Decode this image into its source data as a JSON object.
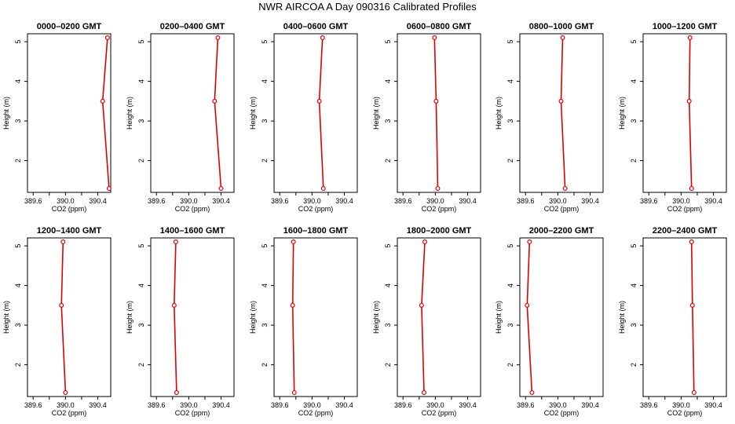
{
  "title": "NWR AIRCOA A  Day 090316  Calibrated Profiles",
  "colors": {
    "series": "#dd0000",
    "frame": "#000000",
    "background": "#ffffff"
  },
  "chart_data": {
    "type": "line",
    "xlabel": "CO2 (ppm)",
    "ylabel": "Height (m)",
    "xlim": [
      389.53,
      390.56
    ],
    "ylim": [
      1.2,
      5.2
    ],
    "xticks": [
      389.6,
      389.8,
      390.0,
      390.2,
      390.4
    ],
    "xtick_labels": [
      "389.6",
      "",
      "390.0",
      "",
      "390.4"
    ],
    "yticks": [
      2,
      3,
      4,
      5
    ],
    "yaxis_ticks_only": [
      1,
      2,
      3,
      4,
      5
    ],
    "grid": false,
    "panels": [
      {
        "title": "0000–0200 GMT",
        "points": [
          {
            "x": 390.52,
            "y": 5.1
          },
          {
            "x": 390.46,
            "y": 3.5
          },
          {
            "x": 390.54,
            "y": 1.3
          }
        ]
      },
      {
        "title": "0200–0400 GMT",
        "points": [
          {
            "x": 390.36,
            "y": 5.1
          },
          {
            "x": 390.32,
            "y": 3.5
          },
          {
            "x": 390.4,
            "y": 1.3
          }
        ]
      },
      {
        "title": "0400–0600 GMT",
        "points": [
          {
            "x": 390.13,
            "y": 5.1
          },
          {
            "x": 390.09,
            "y": 3.5
          },
          {
            "x": 390.14,
            "y": 1.3
          }
        ]
      },
      {
        "title": "0600–0800 GMT",
        "points": [
          {
            "x": 389.99,
            "y": 5.1
          },
          {
            "x": 390.01,
            "y": 3.5
          },
          {
            "x": 390.03,
            "y": 1.3
          }
        ]
      },
      {
        "title": "0800–1000 GMT",
        "points": [
          {
            "x": 390.06,
            "y": 5.1
          },
          {
            "x": 390.04,
            "y": 3.5
          },
          {
            "x": 390.09,
            "y": 1.3
          }
        ]
      },
      {
        "title": "1000–1200 GMT",
        "points": [
          {
            "x": 390.11,
            "y": 5.1
          },
          {
            "x": 390.1,
            "y": 3.5
          },
          {
            "x": 390.13,
            "y": 1.3
          }
        ]
      },
      {
        "title": "1200–1400 GMT",
        "points": [
          {
            "x": 389.97,
            "y": 5.1
          },
          {
            "x": 389.95,
            "y": 3.5
          },
          {
            "x": 390.0,
            "y": 1.3
          }
        ]
      },
      {
        "title": "1400–1600 GMT",
        "points": [
          {
            "x": 389.84,
            "y": 5.1
          },
          {
            "x": 389.82,
            "y": 3.5
          },
          {
            "x": 389.85,
            "y": 1.3
          }
        ]
      },
      {
        "title": "1600–1800 GMT",
        "points": [
          {
            "x": 389.77,
            "y": 5.1
          },
          {
            "x": 389.76,
            "y": 3.5
          },
          {
            "x": 389.78,
            "y": 1.3
          }
        ]
      },
      {
        "title": "1800–2000 GMT",
        "points": [
          {
            "x": 389.87,
            "y": 5.1
          },
          {
            "x": 389.83,
            "y": 3.5
          },
          {
            "x": 389.86,
            "y": 1.3
          }
        ]
      },
      {
        "title": "2000–2200 GMT",
        "points": [
          {
            "x": 389.65,
            "y": 5.1
          },
          {
            "x": 389.62,
            "y": 3.5
          },
          {
            "x": 389.68,
            "y": 1.3
          }
        ]
      },
      {
        "title": "2200–2400 GMT",
        "points": [
          {
            "x": 390.13,
            "y": 5.1
          },
          {
            "x": 390.14,
            "y": 3.5
          },
          {
            "x": 390.16,
            "y": 1.3
          }
        ]
      }
    ]
  }
}
